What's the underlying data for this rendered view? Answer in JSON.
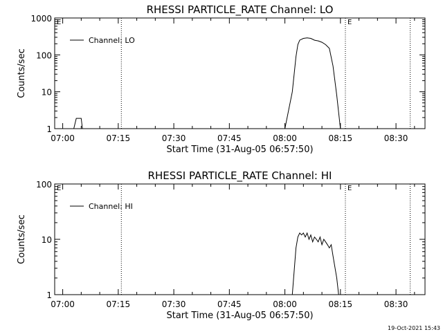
{
  "chart_data": [
    {
      "type": "line",
      "title": "RHESSI PARTICLE_RATE Channel: LO",
      "xlabel": "Start Time (31-Aug-05 06:57:50)",
      "ylabel": "Counts/sec",
      "yscale": "log",
      "ylim": [
        1,
        1000
      ],
      "y_ticks": [
        1,
        10,
        100,
        1000
      ],
      "y_tick_labels": [
        "1",
        "10",
        "100",
        "1000"
      ],
      "xlim": [
        "06:57:50",
        "08:37:50"
      ],
      "x_ticks": [
        "07:00",
        "07:15",
        "07:30",
        "07:45",
        "08:00",
        "08:15",
        "08:30"
      ],
      "legend": "top-left",
      "grid": false,
      "series": [
        {
          "name": "Channel: LO",
          "x": [
            "07:01",
            "07:03",
            "07:03:40",
            "07:04",
            "07:05",
            "07:05:20",
            "07:08",
            "08:00",
            "08:02",
            "08:03",
            "08:03:30",
            "08:04",
            "08:05",
            "08:06",
            "08:07",
            "08:08",
            "08:09",
            "08:10",
            "08:11",
            "08:12",
            "08:13",
            "08:14",
            "08:15"
          ],
          "y": [
            1,
            1,
            1.9,
            1.9,
            1.9,
            1,
            1,
            1,
            10,
            90,
            190,
            250,
            280,
            290,
            280,
            250,
            240,
            220,
            190,
            150,
            50,
            8,
            1
          ]
        }
      ],
      "markers": [
        {
          "label": "E",
          "x": "06:57:50"
        },
        {
          "label": "",
          "x": "07:15:50"
        },
        {
          "label": "E",
          "x": "08:16:20"
        },
        {
          "label": "",
          "x": "08:33:50"
        }
      ]
    },
    {
      "type": "line",
      "title": "RHESSI PARTICLE_RATE Channel: HI",
      "xlabel": "Start Time (31-Aug-05 06:57:50)",
      "ylabel": "Counts/sec",
      "yscale": "log",
      "ylim": [
        1,
        100
      ],
      "y_ticks": [
        1,
        10,
        100
      ],
      "y_tick_labels": [
        "1",
        "10",
        "100"
      ],
      "xlim": [
        "06:57:50",
        "08:37:50"
      ],
      "x_ticks": [
        "07:00",
        "07:15",
        "07:30",
        "07:45",
        "08:00",
        "08:15",
        "08:30"
      ],
      "legend": "top-left",
      "grid": false,
      "series": [
        {
          "name": "Channel: HI",
          "x": [
            "07:01",
            "08:00",
            "08:02",
            "08:03",
            "08:03:30",
            "08:04",
            "08:04:30",
            "08:05",
            "08:05:30",
            "08:06",
            "08:06:30",
            "08:07",
            "08:07:30",
            "08:08",
            "08:08:30",
            "08:09",
            "08:09:30",
            "08:10",
            "08:10:30",
            "08:11",
            "08:11:30",
            "08:12",
            "08:12:30",
            "08:13",
            "08:14",
            "08:14:30"
          ],
          "y": [
            1,
            1,
            1,
            7,
            11,
            13,
            12,
            13,
            11,
            13,
            10,
            12,
            9,
            11,
            10,
            9,
            11,
            8,
            10,
            9,
            8,
            7,
            8,
            5,
            2,
            1
          ]
        }
      ],
      "markers": [
        {
          "label": "E",
          "x": "06:57:50"
        },
        {
          "label": "",
          "x": "07:15:50"
        },
        {
          "label": "E",
          "x": "08:16:20"
        },
        {
          "label": "",
          "x": "08:33:50"
        }
      ]
    }
  ],
  "timestamp": "19-Oct-2021 15:43"
}
